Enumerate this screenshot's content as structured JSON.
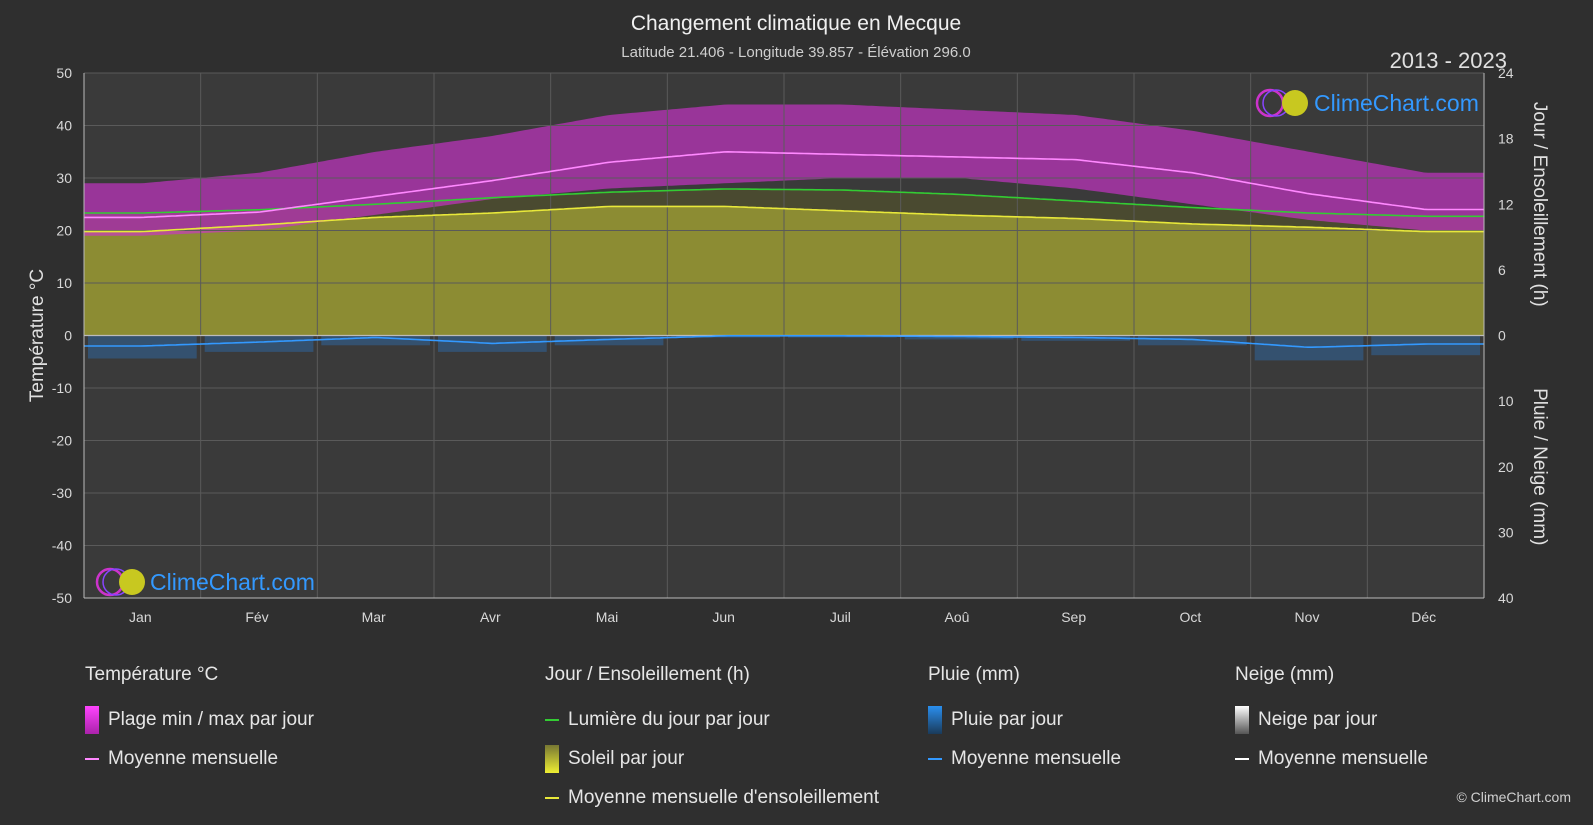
{
  "header": {
    "title": "Changement climatique en Mecque",
    "subtitle": "Latitude 21.406 - Longitude 39.857 - Élévation 296.0",
    "period": "2013 - 2023"
  },
  "brand": {
    "logo_text": "ClimeChart.com",
    "copyright": "© ClimeChart.com"
  },
  "colors": {
    "background": "#2f2f2f",
    "temp_range": "#cc33cc",
    "temp_mean": "#ff88ff",
    "daylight": "#33cc33",
    "sunshine_fill": "#a8a832",
    "sunshine_mean": "#e8e83a",
    "rain": "#2a7fd4",
    "rain_mean": "#3399ff",
    "snow_mean": "#ffffff",
    "logo_blue": "#3399ff"
  },
  "chart_data": {
    "type": "area",
    "x_axis": {
      "tick_labels": [
        "Jan",
        "Fév",
        "Mar",
        "Avr",
        "Mai",
        "Jun",
        "Juil",
        "Aoû",
        "Sep",
        "Oct",
        "Nov",
        "Déc"
      ]
    },
    "left_axis": {
      "label": "Température °C",
      "range": [
        -50,
        50
      ],
      "ticks": [
        50,
        40,
        30,
        20,
        10,
        0,
        -10,
        -20,
        -30,
        -40,
        -50
      ]
    },
    "right_axis_top": {
      "label": "Jour / Ensoleillement (h)",
      "range": [
        0,
        24
      ],
      "ticks": [
        24,
        18,
        12,
        6,
        0
      ]
    },
    "right_axis_bottom": {
      "label": "Pluie / Neige (mm)",
      "range": [
        0,
        40
      ],
      "ticks": [
        10,
        20,
        30,
        40
      ]
    },
    "grid": true,
    "series": [
      {
        "name": "Plage min / max par jour",
        "type": "band",
        "min": [
          19,
          20,
          23,
          26,
          28,
          29,
          30,
          30,
          28,
          25,
          22,
          20
        ],
        "max": [
          29,
          31,
          35,
          38,
          42,
          44,
          44,
          43,
          42,
          39,
          35,
          31
        ]
      },
      {
        "name": "Moyenne mensuelle",
        "type": "line",
        "axis": "temperature",
        "values": [
          22.5,
          23.5,
          26.5,
          29.5,
          33,
          35,
          34.5,
          34,
          33.5,
          31,
          27,
          24
        ]
      },
      {
        "name": "Lumière du jour par jour",
        "type": "line",
        "axis": "hours",
        "values": [
          11.2,
          11.5,
          12,
          12.6,
          13.1,
          13.4,
          13.3,
          12.9,
          12.3,
          11.7,
          11.2,
          10.9
        ]
      },
      {
        "name": "Soleil par jour",
        "type": "area",
        "axis": "hours",
        "values": [
          9.5,
          10.1,
          10.8,
          11.2,
          11.8,
          11.8,
          11.4,
          11,
          10.7,
          10.2,
          9.9,
          9.5
        ]
      },
      {
        "name": "Moyenne mensuelle d'ensoleillement",
        "type": "line",
        "axis": "hours",
        "values": [
          9.5,
          10.1,
          10.8,
          11.2,
          11.8,
          11.8,
          11.4,
          11,
          10.7,
          10.2,
          9.9,
          9.5
        ]
      },
      {
        "name": "Pluie par jour",
        "type": "bars",
        "axis": "precip",
        "values": [
          3.5,
          2.5,
          1.5,
          2.5,
          1.5,
          0.3,
          0.3,
          0.6,
          0.8,
          1.5,
          3.8,
          3
        ]
      },
      {
        "name": "Moyenne mensuelle",
        "type": "line",
        "axis": "precip",
        "values": [
          1.6,
          1,
          0.3,
          1.2,
          0.6,
          0.05,
          0.05,
          0.15,
          0.3,
          0.6,
          1.8,
          1.3
        ]
      },
      {
        "name": "Neige par jour",
        "type": "bars",
        "axis": "precip",
        "values": [
          0,
          0,
          0,
          0,
          0,
          0,
          0,
          0,
          0,
          0,
          0,
          0
        ]
      },
      {
        "name": "Moyenne mensuelle",
        "type": "line",
        "axis": "precip",
        "values": [
          0,
          0,
          0,
          0,
          0,
          0,
          0,
          0,
          0,
          0,
          0,
          0
        ]
      }
    ]
  },
  "legend": {
    "temperature": {
      "heading": "Température °C",
      "items": [
        "Plage min / max par jour",
        "Moyenne mensuelle"
      ]
    },
    "sunshine": {
      "heading": "Jour / Ensoleillement (h)",
      "items": [
        "Lumière du jour par jour",
        "Soleil par jour",
        "Moyenne mensuelle d'ensoleillement"
      ]
    },
    "rain": {
      "heading": "Pluie (mm)",
      "items": [
        "Pluie par jour",
        "Moyenne mensuelle"
      ]
    },
    "snow": {
      "heading": "Neige (mm)",
      "items": [
        "Neige par jour",
        "Moyenne mensuelle"
      ]
    }
  }
}
